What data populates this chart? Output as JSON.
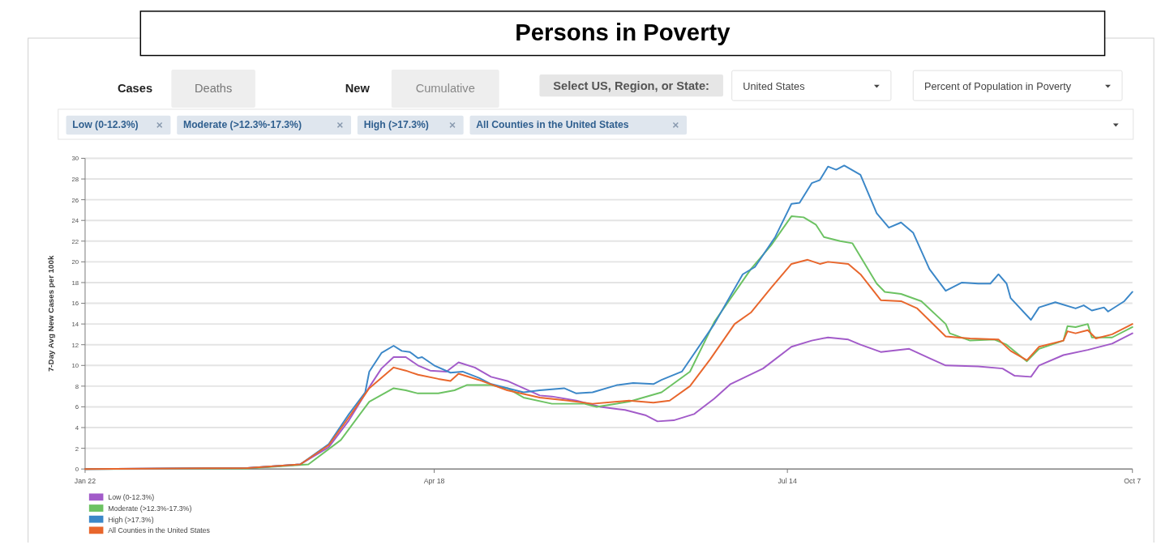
{
  "chart_data": {
    "type": "line",
    "title": "Persons in Poverty",
    "ylabel": "7-Day Avg New Cases per 100k",
    "annotations": [
      "Cases",
      "Deaths",
      "New",
      "Cumulative",
      "Select US, Region, or State:",
      "United States",
      "Percent of Population in Poverty",
      "Low (0-12.3%)",
      "Moderate (>12.3%-17.3%)",
      "High (>17.3%)",
      "All Counties in the United States"
    ],
    "xlim": [
      "--01-22",
      "--10-07"
    ],
    "xticks": [
      {
        "value": "--01-22",
        "label": "Jan 22"
      },
      {
        "value": "--04-18",
        "label": "Apr 18"
      },
      {
        "value": "--07-14",
        "label": "Jul 14"
      },
      {
        "value": "--10-07",
        "label": "Oct 7"
      }
    ],
    "ylim": [
      0,
      30
    ],
    "yticks": [
      0,
      2,
      4,
      6,
      8,
      10,
      12,
      14,
      16,
      18,
      20,
      22,
      24,
      26,
      28,
      30
    ],
    "grid": "y",
    "legend": "bottom left",
    "series": [
      {
        "name": "Low (0-12.3%)",
        "color": "#a25bc9",
        "x": [
          "--01-22",
          "--03-03",
          "--03-16",
          "--03-23",
          "--03-28",
          "--04-02",
          "--04-05",
          "--04-08",
          "--04-11",
          "--04-14",
          "--04-17",
          "--04-21",
          "--04-24",
          "--04-28",
          "--05-02",
          "--05-06",
          "--05-10",
          "--05-14",
          "--05-17",
          "--05-23",
          "--05-29",
          "--06-04",
          "--06-09",
          "--06-12",
          "--06-16",
          "--06-21",
          "--06-26",
          "--06-30",
          "--07-08",
          "--07-15",
          "--07-20",
          "--07-24",
          "--07-29",
          "--08-01",
          "--08-06",
          "--08-13",
          "--08-18",
          "--08-22",
          "--08-30",
          "--09-05",
          "--09-08",
          "--09-12",
          "--09-14",
          "--09-20",
          "--09-26",
          "--10-02",
          "--10-07"
        ],
        "values": [
          0,
          0.1,
          0.45,
          2.1,
          4.7,
          7.9,
          9.7,
          10.8,
          10.8,
          10.0,
          9.5,
          9.4,
          10.3,
          9.8,
          8.9,
          8.5,
          7.8,
          7.1,
          7.0,
          6.6,
          6.0,
          5.7,
          5.2,
          4.6,
          4.7,
          5.3,
          6.8,
          8.2,
          9.7,
          11.8,
          12.4,
          12.7,
          12.5,
          12.0,
          11.3,
          11.6,
          10.7,
          10.0,
          9.9,
          9.7,
          9.0,
          8.9,
          10.0,
          11.0,
          11.5,
          12.1,
          13.1
        ]
      },
      {
        "name": "Moderate (>12.3%-17.3%)",
        "color": "#6cc262",
        "x": [
          "--01-22",
          "--03-03",
          "--03-18",
          "--03-26",
          "--04-02",
          "--04-08",
          "--04-11",
          "--04-14",
          "--04-19",
          "--04-23",
          "--04-26",
          "--05-02",
          "--05-06",
          "--05-10",
          "--05-17",
          "--05-25",
          "--05-28",
          "--06-05",
          "--06-13",
          "--06-20",
          "--06-26",
          "--07-02",
          "--07-05",
          "--07-10",
          "--07-15",
          "--07-18",
          "--07-21",
          "--07-23",
          "--07-27",
          "--07-30",
          "--08-05",
          "--08-07",
          "--08-11",
          "--08-16",
          "--08-22",
          "--08-23",
          "--08-28",
          "--09-03",
          "--09-06",
          "--09-11",
          "--09-14",
          "--09-20",
          "--09-21",
          "--09-23",
          "--09-26",
          "--09-27",
          "--10-02",
          "--10-07"
        ],
        "values": [
          0,
          0.05,
          0.45,
          2.8,
          6.5,
          7.8,
          7.6,
          7.3,
          7.3,
          7.6,
          8.1,
          8.1,
          7.8,
          6.9,
          6.3,
          6.3,
          6.0,
          6.5,
          7.4,
          9.4,
          14.2,
          17.6,
          19.3,
          21.6,
          24.4,
          24.3,
          23.6,
          22.4,
          22.0,
          21.8,
          17.9,
          17.1,
          16.9,
          16.2,
          14.0,
          13.1,
          12.4,
          12.5,
          12.0,
          10.4,
          11.6,
          12.4,
          13.8,
          13.7,
          14.0,
          12.7,
          12.7,
          13.7
        ]
      },
      {
        "name": "High (>17.3%)",
        "color": "#3b87c8",
        "x": [
          "--01-22",
          "--03-03",
          "--03-16",
          "--03-23",
          "--03-28",
          "--04-01",
          "--04-02",
          "--04-05",
          "--04-08",
          "--04-10",
          "--04-12",
          "--04-14",
          "--04-15",
          "--04-18",
          "--04-22",
          "--04-25",
          "--04-29",
          "--05-02",
          "--05-10",
          "--05-14",
          "--05-20",
          "--05-23",
          "--05-27",
          "--06-02",
          "--06-06",
          "--06-11",
          "--06-13",
          "--06-18",
          "--06-26",
          "--07-03",
          "--07-06",
          "--07-11",
          "--07-15",
          "--07-17",
          "--07-20",
          "--07-22",
          "--07-24",
          "--07-26",
          "--07-28",
          "--08-01",
          "--08-05",
          "--08-08",
          "--08-11",
          "--08-14",
          "--08-18",
          "--08-22",
          "--08-26",
          "--08-30",
          "--09-02",
          "--09-04",
          "--09-06",
          "--09-07",
          "--09-12",
          "--09-14",
          "--09-18",
          "--09-23",
          "--09-25",
          "--09-27",
          "--09-30",
          "--10-01",
          "--10-05",
          "--10-07"
        ],
        "values": [
          0,
          0.1,
          0.45,
          2.4,
          5.3,
          7.4,
          9.4,
          11.2,
          11.9,
          11.4,
          11.3,
          10.7,
          10.8,
          10.0,
          9.3,
          9.4,
          8.8,
          8.2,
          7.4,
          7.6,
          7.8,
          7.3,
          7.4,
          8.1,
          8.3,
          8.2,
          8.6,
          9.4,
          14.0,
          18.8,
          19.5,
          22.4,
          25.6,
          25.7,
          27.6,
          27.9,
          29.2,
          28.9,
          29.3,
          28.4,
          24.7,
          23.3,
          23.8,
          22.8,
          19.3,
          17.2,
          18.0,
          17.9,
          17.9,
          18.8,
          17.9,
          16.5,
          14.4,
          15.6,
          16.1,
          15.5,
          15.8,
          15.3,
          15.6,
          15.2,
          16.2,
          17.1
        ]
      },
      {
        "name": "All Counties in the United States",
        "color": "#e8662c",
        "x": [
          "--01-22",
          "--03-03",
          "--03-16",
          "--03-23",
          "--03-28",
          "--04-02",
          "--04-08",
          "--04-11",
          "--04-14",
          "--04-19",
          "--04-22",
          "--04-24",
          "--04-29",
          "--05-06",
          "--05-14",
          "--05-21",
          "--05-27",
          "--06-05",
          "--06-11",
          "--06-15",
          "--06-20",
          "--06-25",
          "--07-01",
          "--07-05",
          "--07-10",
          "--07-15",
          "--07-19",
          "--07-22",
          "--07-24",
          "--07-29",
          "--08-01",
          "--08-06",
          "--08-11",
          "--08-15",
          "--08-22",
          "--08-28",
          "--09-04",
          "--09-07",
          "--09-11",
          "--09-14",
          "--09-20",
          "--09-21",
          "--09-23",
          "--09-26",
          "--09-28",
          "--10-02",
          "--10-07"
        ],
        "values": [
          0,
          0.1,
          0.45,
          2.3,
          5.0,
          7.8,
          9.8,
          9.5,
          9.1,
          8.7,
          8.5,
          9.2,
          8.6,
          7.6,
          6.9,
          6.6,
          6.3,
          6.6,
          6.4,
          6.6,
          8.0,
          10.6,
          14.0,
          15.1,
          17.5,
          19.8,
          20.2,
          19.8,
          20.0,
          19.8,
          18.8,
          16.3,
          16.2,
          15.5,
          12.8,
          12.6,
          12.5,
          11.4,
          10.5,
          11.8,
          12.4,
          13.3,
          13.1,
          13.4,
          12.6,
          13.0,
          14.0
        ]
      }
    ]
  }
}
